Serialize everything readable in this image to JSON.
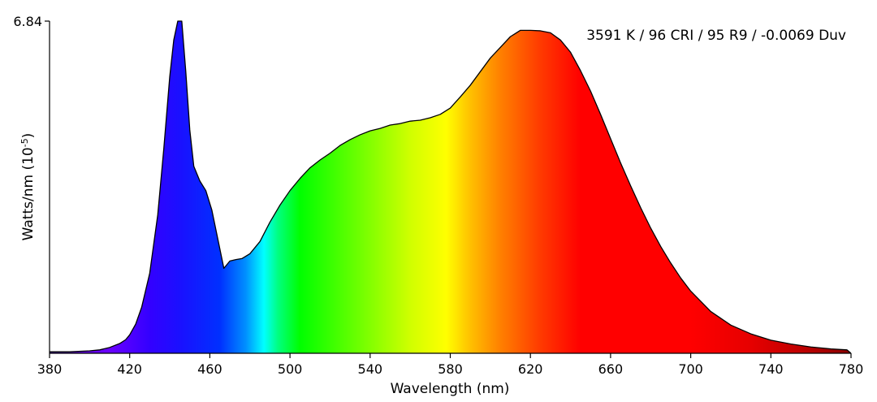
{
  "chart_data": {
    "type": "area",
    "annotation": "3591 K / 96 CRI / 95 R9 / -0.0069 Duv",
    "xlabel": "Wavelength (nm)",
    "ylabel_main": "Watts/nm (10",
    "ylabel_sup": "-5",
    "ylabel_close": ")",
    "y_tick_label": "6.84",
    "xlim": [
      380,
      780
    ],
    "ylim": [
      0,
      6.84
    ],
    "x_ticks": [
      380,
      420,
      460,
      500,
      540,
      580,
      620,
      660,
      700,
      740,
      780
    ],
    "fill": "visible-spectrum rainbow gradient (violet to deep red)",
    "series": [
      {
        "x": [
          380,
          390,
          400,
          405,
          410,
          415,
          418,
          420,
          423,
          426,
          430,
          434,
          437,
          440,
          442,
          444,
          446,
          448,
          450,
          452,
          455,
          458,
          461,
          464,
          467,
          470,
          473,
          476,
          480,
          485,
          490,
          495,
          500,
          505,
          510,
          515,
          520,
          525,
          530,
          535,
          540,
          545,
          550,
          555,
          560,
          565,
          570,
          575,
          580,
          585,
          590,
          595,
          600,
          605,
          610,
          615,
          620,
          625,
          630,
          635,
          640,
          645,
          650,
          655,
          660,
          665,
          670,
          675,
          680,
          685,
          690,
          695,
          700,
          710,
          720,
          730,
          740,
          750,
          760,
          770,
          778,
          780
        ],
        "y": [
          0.03,
          0.03,
          0.05,
          0.07,
          0.12,
          0.2,
          0.28,
          0.38,
          0.6,
          0.95,
          1.65,
          2.85,
          4.2,
          5.7,
          6.45,
          6.84,
          6.84,
          5.8,
          4.6,
          3.85,
          3.55,
          3.35,
          2.95,
          2.35,
          1.75,
          1.9,
          1.93,
          1.95,
          2.05,
          2.3,
          2.7,
          3.05,
          3.35,
          3.6,
          3.82,
          3.98,
          4.12,
          4.28,
          4.4,
          4.5,
          4.58,
          4.63,
          4.7,
          4.73,
          4.78,
          4.8,
          4.85,
          4.92,
          5.05,
          5.28,
          5.52,
          5.8,
          6.08,
          6.3,
          6.52,
          6.65,
          6.65,
          6.64,
          6.6,
          6.45,
          6.2,
          5.82,
          5.4,
          4.92,
          4.42,
          3.92,
          3.45,
          3.0,
          2.58,
          2.2,
          1.86,
          1.55,
          1.28,
          0.86,
          0.58,
          0.4,
          0.27,
          0.19,
          0.13,
          0.09,
          0.07,
          0.0
        ]
      }
    ]
  }
}
